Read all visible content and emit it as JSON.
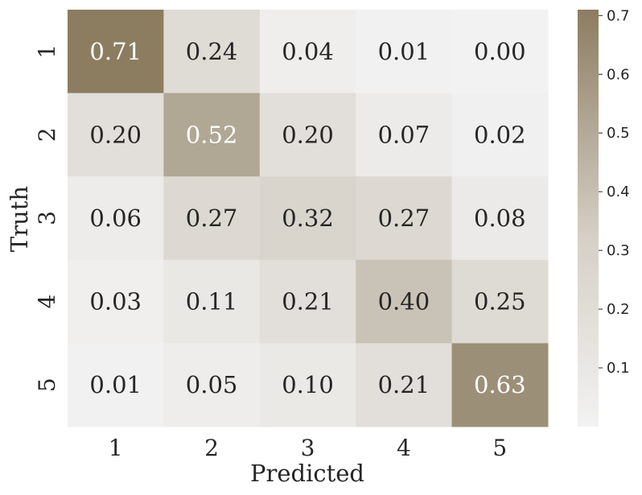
{
  "chart_data": {
    "type": "heatmap",
    "x_categories": [
      "1",
      "2",
      "3",
      "4",
      "5"
    ],
    "y_categories": [
      "1",
      "2",
      "3",
      "4",
      "5"
    ],
    "values": [
      [
        0.71,
        0.24,
        0.04,
        0.01,
        0.0
      ],
      [
        0.2,
        0.52,
        0.2,
        0.07,
        0.02
      ],
      [
        0.06,
        0.27,
        0.32,
        0.27,
        0.08
      ],
      [
        0.03,
        0.11,
        0.21,
        0.4,
        0.25
      ],
      [
        0.01,
        0.05,
        0.1,
        0.21,
        0.63
      ]
    ],
    "cell_labels": [
      [
        "0.71",
        "0.24",
        "0.04",
        "0.01",
        "0.00"
      ],
      [
        "0.20",
        "0.52",
        "0.20",
        "0.07",
        "0.02"
      ],
      [
        "0.06",
        "0.27",
        "0.32",
        "0.27",
        "0.08"
      ],
      [
        "0.03",
        "0.11",
        "0.21",
        "0.40",
        "0.25"
      ],
      [
        "0.01",
        "0.05",
        "0.10",
        "0.21",
        "0.63"
      ]
    ],
    "xlabel": "Predicted",
    "ylabel": "Truth",
    "colorbar": {
      "ticks": [
        0.1,
        0.2,
        0.3,
        0.4,
        0.5,
        0.6,
        0.7
      ],
      "tick_labels": [
        "0.1",
        "0.2",
        "0.3",
        "0.4",
        "0.5",
        "0.6",
        "0.7"
      ],
      "range": [
        0.0,
        0.71
      ]
    },
    "colormap": {
      "low": "#f2f2f2",
      "mid": "#d9d4cc",
      "high": "#8c7d61"
    },
    "text_color_dark": "#262626",
    "text_color_light": "#ffffff"
  }
}
